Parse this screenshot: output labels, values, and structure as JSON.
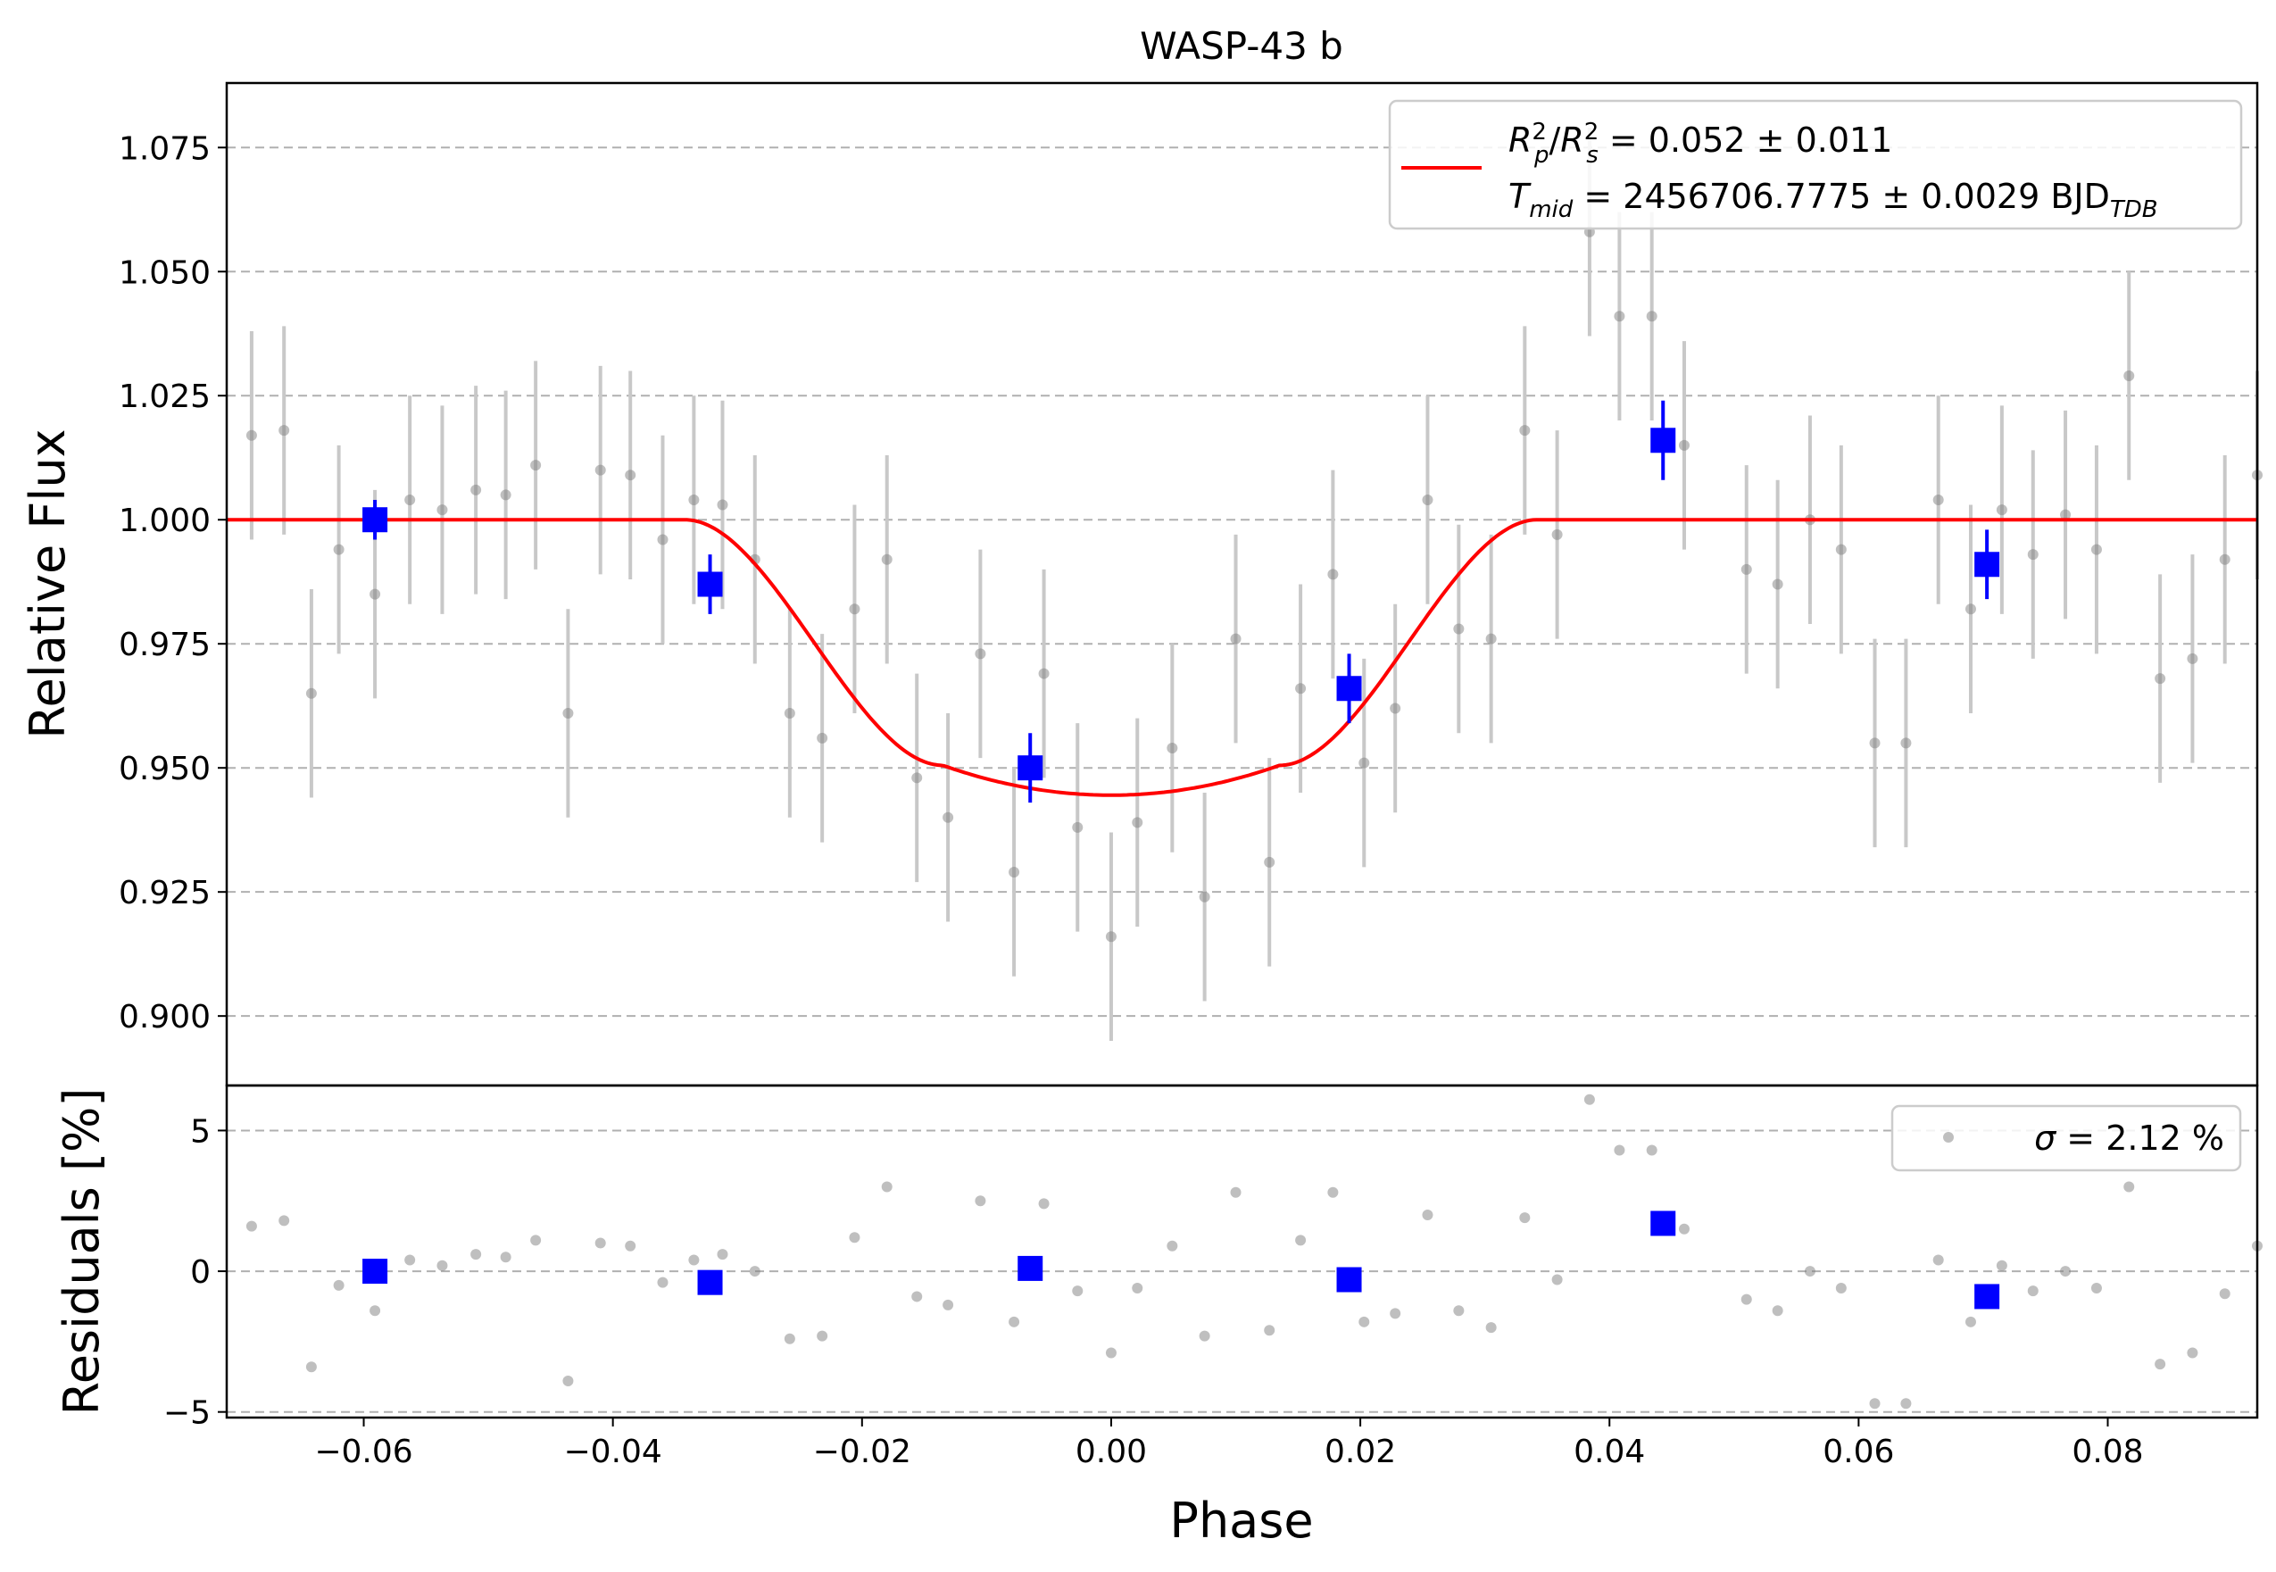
{
  "chart_data": {
    "type": "scatter",
    "title": "WASP-43 b",
    "xlabel": "Phase",
    "xlim": [
      -0.071,
      0.092
    ],
    "xticks": [
      -0.06,
      -0.04,
      -0.02,
      0.0,
      0.02,
      0.04,
      0.06,
      0.08
    ],
    "xtick_labels": [
      "−0.06",
      "−0.04",
      "−0.02",
      "0.00",
      "0.02",
      "0.04",
      "0.06",
      "0.08"
    ],
    "grid": true,
    "colors": {
      "raw": "#808080",
      "errbar_raw": "#c8c8c8",
      "binned": "#0000ff",
      "model": "#ff0000"
    },
    "top_panel": {
      "ylabel": "Relative Flux",
      "ylim": [
        0.886,
        1.088
      ],
      "yticks": [
        0.9,
        0.925,
        0.95,
        0.975,
        1.0,
        1.025,
        1.05,
        1.075
      ],
      "ytick_labels": [
        "0.900",
        "0.925",
        "0.950",
        "0.975",
        "1.000",
        "1.025",
        "1.050",
        "1.075"
      ],
      "legend": {
        "location": "upper right",
        "line1": {
          "base": "R",
          "sub": "p",
          "sup": "2",
          "sep": "/",
          "base2": "R",
          "sub2": "s",
          "sup2": "2",
          "rest": " = 0.052 ± 0.011"
        },
        "line2": {
          "base": "T",
          "sub": "mid",
          "rest": " = 2456706.7775 ± 0.0029 BJD",
          "suffix_sub": "TDB"
        }
      },
      "raw_x": [
        -0.0712,
        -0.069,
        -0.0664,
        -0.0642,
        -0.062,
        -0.0591,
        -0.0563,
        -0.0537,
        -0.051,
        -0.0486,
        -0.0462,
        -0.0436,
        -0.041,
        -0.0386,
        -0.036,
        -0.0335,
        -0.0312,
        -0.0286,
        -0.0258,
        -0.0232,
        -0.0206,
        -0.018,
        -0.0156,
        -0.0131,
        -0.0105,
        -0.0078,
        -0.0054,
        -0.0027,
        0.0,
        0.0021,
        0.0049,
        0.0075,
        0.01,
        0.0127,
        0.0152,
        0.0178,
        0.0203,
        0.0228,
        0.0254,
        0.0279,
        0.0305,
        0.0332,
        0.0358,
        0.0384,
        0.0408,
        0.0434,
        0.046,
        0.051,
        0.0535,
        0.0561,
        0.0586,
        0.0613,
        0.0638,
        0.0664,
        0.069,
        0.0715,
        0.074,
        0.0766,
        0.0791,
        0.0817,
        0.0842,
        0.0868,
        0.0894,
        0.092
      ],
      "raw_y": [
        0.989,
        1.017,
        1.018,
        0.965,
        0.994,
        0.985,
        1.004,
        1.002,
        1.006,
        1.005,
        1.011,
        0.961,
        1.01,
        1.009,
        0.996,
        1.004,
        1.003,
        0.992,
        0.961,
        0.956,
        0.982,
        0.992,
        0.948,
        0.94,
        0.973,
        0.929,
        0.969,
        0.938,
        0.916,
        0.939,
        0.954,
        0.924,
        0.976,
        0.931,
        0.966,
        0.989,
        0.951,
        0.962,
        1.004,
        0.978,
        0.976,
        1.018,
        0.997,
        1.058,
        1.041,
        1.041,
        1.015,
        0.99,
        0.987,
        1.0,
        0.994,
        0.955,
        0.955,
        1.004,
        0.982,
        1.002,
        0.993,
        1.001,
        0.994,
        1.029,
        0.968,
        0.972,
        0.992,
        1.009
      ],
      "raw_err": 0.021,
      "binned_x": [
        -0.0591,
        -0.0322,
        -0.0065,
        0.0191,
        0.0443,
        0.0703
      ],
      "binned_y": [
        1.0,
        0.987,
        0.95,
        0.966,
        1.016,
        0.991
      ],
      "binned_err": [
        0.004,
        0.006,
        0.007,
        0.007,
        0.008,
        0.007
      ],
      "model": {
        "depth": 0.0555,
        "t1": 0.0342,
        "t2": 0.0135
      }
    },
    "bottom_panel": {
      "ylabel": "Residuals [%]",
      "ylim": [
        -5.2,
        6.6
      ],
      "yticks": [
        -5,
        0,
        5
      ],
      "ytick_labels": [
        "−5",
        "0",
        "5"
      ],
      "legend": {
        "location": "upper right",
        "sigma_symbol": "σ",
        "text": " = 2.12 %"
      },
      "raw_y": [
        -1.1,
        1.6,
        1.8,
        -3.4,
        -0.5,
        -1.4,
        0.4,
        0.2,
        0.6,
        0.5,
        1.1,
        -3.9,
        1.0,
        0.9,
        -0.4,
        0.4,
        0.6,
        0.0,
        -2.4,
        -2.3,
        1.2,
        3.0,
        -0.9,
        -1.2,
        2.5,
        -1.8,
        2.4,
        -0.7,
        -2.9,
        -0.6,
        0.9,
        -2.3,
        2.8,
        -2.1,
        1.1,
        2.8,
        -1.8,
        -1.5,
        2.0,
        -1.4,
        -2.0,
        1.9,
        -0.3,
        6.1,
        4.3,
        4.3,
        1.5,
        -1.0,
        -1.4,
        0.0,
        -0.6,
        -4.7,
        -4.7,
        0.4,
        -1.8,
        0.2,
        -0.7,
        0.0,
        -0.6,
        3.0,
        -3.3,
        -2.9,
        -0.8,
        0.9
      ],
      "binned_y": [
        0.0,
        -0.4,
        0.1,
        -0.3,
        1.7,
        -0.9
      ]
    }
  }
}
